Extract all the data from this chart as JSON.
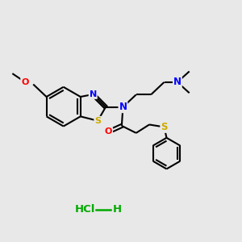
{
  "bg_color": "#e8e8e8",
  "atom_colors": {
    "N": "#0000ff",
    "O": "#ff0000",
    "S": "#ccaa00",
    "C": "#000000",
    "Cl": "#00bb00",
    "H": "#000000"
  },
  "bond_color": "#000000",
  "hcl_color": "#00aa00",
  "bond_lw": 1.5,
  "font_size_atom": 8.0,
  "font_size_hcl": 9.5
}
